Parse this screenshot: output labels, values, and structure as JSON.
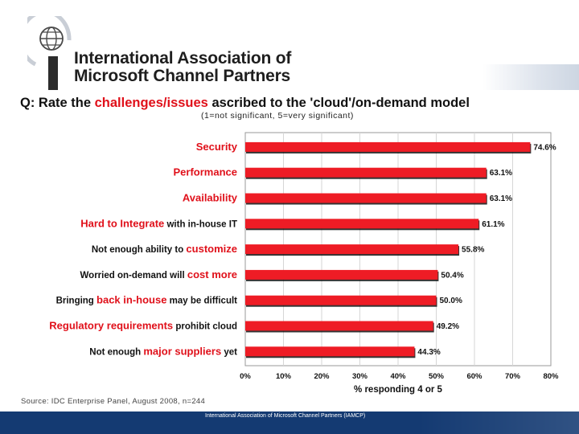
{
  "org": {
    "name_line1": "International Association of",
    "name_line2": "Microsoft Channel Partners"
  },
  "question": {
    "prefix": "Q: Rate the ",
    "highlight": "challenges/issues",
    "suffix": " ascribed to the 'cloud'/on-demand model",
    "subtitle": "(1=not significant, 5=very significant)"
  },
  "chart_data": {
    "type": "bar",
    "orientation": "horizontal",
    "categories": [
      [
        {
          "t": "Security",
          "r": 1
        }
      ],
      [
        {
          "t": "Performance",
          "r": 1
        }
      ],
      [
        {
          "t": "Availability",
          "r": 1
        }
      ],
      [
        {
          "t": "Hard to Integrate",
          "r": 1
        },
        {
          "t": " with in-house IT",
          "r": 0
        }
      ],
      [
        {
          "t": "Not enough ability to ",
          "r": 0
        },
        {
          "t": "customize",
          "r": 1
        }
      ],
      [
        {
          "t": "Worried on-demand will ",
          "r": 0
        },
        {
          "t": "cost more",
          "r": 1
        }
      ],
      [
        {
          "t": "Bringing ",
          "r": 0
        },
        {
          "t": "back in-house",
          "r": 1
        },
        {
          "t": " may be difficult",
          "r": 0
        }
      ],
      [
        {
          "t": "Regulatory requirements",
          "r": 1
        },
        {
          "t": " prohibit cloud",
          "r": 0
        }
      ],
      [
        {
          "t": "Not enough ",
          "r": 0
        },
        {
          "t": "major suppliers",
          "r": 1
        },
        {
          "t": " yet",
          "r": 0
        }
      ]
    ],
    "values": [
      74.6,
      63.1,
      63.1,
      61.1,
      55.8,
      50.4,
      50.0,
      49.2,
      44.3
    ],
    "value_labels": [
      "74.6%",
      "63.1%",
      "63.1%",
      "61.1%",
      "55.8%",
      "50.4%",
      "50.0%",
      "49.2%",
      "44.3%"
    ],
    "xticks": [
      "0%",
      "10%",
      "20%",
      "30%",
      "40%",
      "50%",
      "60%",
      "70%",
      "80%"
    ],
    "xlim": [
      0,
      80
    ],
    "xlabel": "% responding 4 or 5",
    "bar_color": "#ee1c25",
    "accent_color": "#e0101a",
    "label_color": "#111111"
  },
  "source": "Source: IDC Enterprise Panel, August 2008, n=244",
  "footer": {
    "text": "International Association of Microsoft Channel Partners (IAMCP)",
    "color": "#143a72"
  }
}
